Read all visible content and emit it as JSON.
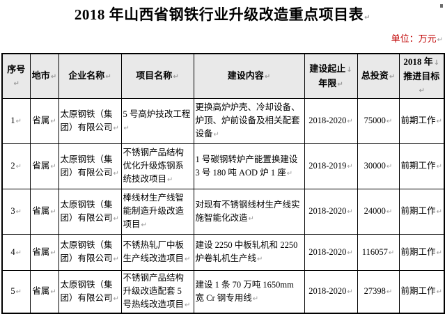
{
  "page": {
    "title": "2018 年山西省钢铁行业升级改造重点项目表",
    "unit_note": "单位：万元",
    "unit_note_color": "#c00000"
  },
  "marks": {
    "paragraph": "↵",
    "linebreak": "↓"
  },
  "table": {
    "columns": [
      {
        "label": "序号",
        "lines": [
          "序号"
        ]
      },
      {
        "label": "地市",
        "lines": [
          "地市"
        ]
      },
      {
        "label": "企业名称",
        "lines": [
          "企业名称"
        ]
      },
      {
        "label": "项目名称",
        "lines": [
          "项目名称"
        ]
      },
      {
        "label": "建设内容",
        "lines": [
          "建设内容"
        ]
      },
      {
        "label": "建设起止年限",
        "lines": [
          "建设起止",
          "年限"
        ]
      },
      {
        "label": "总投资",
        "lines": [
          "总投资"
        ]
      },
      {
        "label": "2018 年推进目标",
        "lines": [
          "2018 年",
          "推进目标"
        ]
      }
    ],
    "rows": [
      {
        "seq": "1",
        "city": "省属",
        "company": "太原钢铁（集团）有限公司",
        "project": "5 号高炉技改工程",
        "content": "更换高炉炉壳、冷却设备、炉顶、炉前设备及相关配套设备",
        "years": "2018-2020",
        "investment": "75000",
        "target": "前期工作"
      },
      {
        "seq": "2",
        "city": "省属",
        "company": "太原钢铁（集团）有限公司",
        "project": "不锈钢产品结构优化升级炼钢系统技改项目",
        "content": "1 号碳钢转炉产能置换建设 3 号 180 吨 AOD 炉 1 座",
        "years": "2018-2019",
        "investment": "30000",
        "target": "前期工作"
      },
      {
        "seq": "3",
        "city": "省属",
        "company": "太原钢铁（集团）有限公司",
        "project": "棒线材生产线智能制造升级改造项目",
        "content": "对现有不锈钢线材生产线实施智能化改造",
        "years": "2018-2020",
        "investment": "24000",
        "target": "前期工作"
      },
      {
        "seq": "4",
        "city": "省属",
        "company": "太原钢铁（集团）有限公司",
        "project": "不锈热轧厂中板生产线改造项目",
        "content": "建设 2250 中板轧机和 2250 炉卷轧机生产线",
        "years": "2018-2020",
        "investment": "116057",
        "target": "前期工作"
      },
      {
        "seq": "5",
        "city": "省属",
        "company": "太原钢铁（集团）有限公司",
        "project": "不锈钢产品结构升级改造配套 5 号热线改造项目",
        "content": "建设 1 条 70 万吨 1650mm 宽 Cr 钢专用线",
        "years": "2018-2020",
        "investment": "27398",
        "target": "前期工作"
      }
    ]
  }
}
